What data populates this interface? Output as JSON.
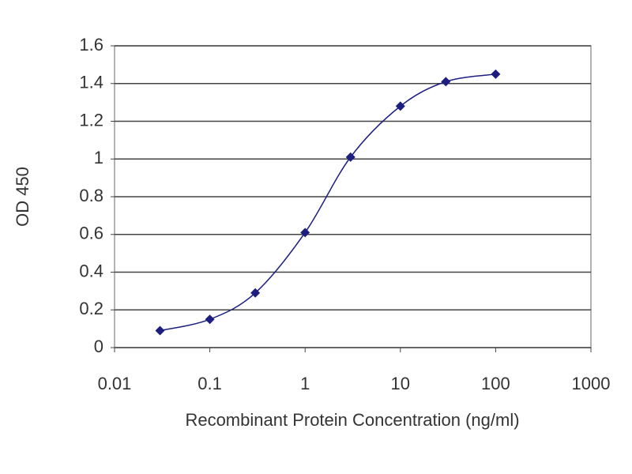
{
  "chart_data": {
    "type": "line",
    "xscale": "log",
    "xlabel": "Recombinant Protein Concentration (ng/ml)",
    "ylabel": "OD 450",
    "x": [
      0.03,
      0.1,
      0.3,
      1,
      3,
      10,
      30,
      100
    ],
    "series": [
      {
        "color": "#1c1f80",
        "values": [
          0.09,
          0.15,
          0.29,
          0.61,
          1.01,
          1.28,
          1.41,
          1.45
        ]
      }
    ],
    "xlim": [
      0.01,
      1000
    ],
    "xticks": [
      0.01,
      0.1,
      1,
      10,
      100,
      1000
    ],
    "ylim": [
      0,
      1.6
    ],
    "yticks": [
      0,
      0.2,
      0.4,
      0.6,
      0.8,
      1,
      1.2,
      1.4,
      1.6
    ],
    "grid": true,
    "marker": "diamond"
  }
}
